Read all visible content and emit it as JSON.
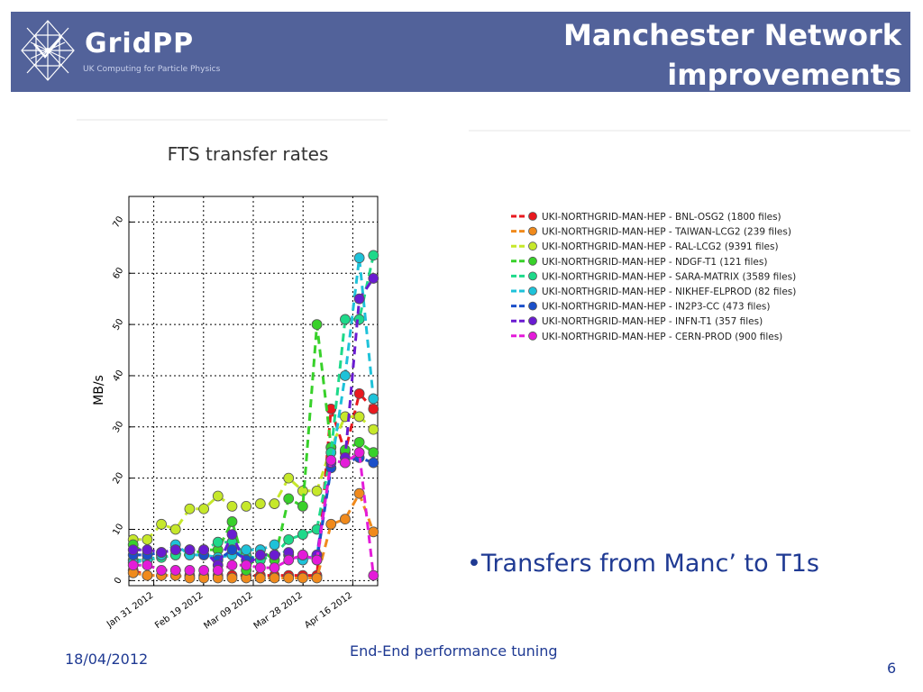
{
  "header": {
    "logo_name": "GridPP",
    "logo_tagline": "UK Computing for Particle Physics",
    "title_line1": "Manchester Network",
    "title_line2": "improvements"
  },
  "bullet": "•Transfers from Manc’ to T1s",
  "footer": {
    "date": "18/04/2012",
    "title": "End-End performance tuning",
    "page": "6"
  },
  "chart_data": {
    "type": "line",
    "title": "FTS transfer rates",
    "ylabel": "MB/s",
    "ylim": [
      -1,
      75
    ],
    "yticks": [
      0,
      10,
      20,
      30,
      40,
      50,
      60,
      70
    ],
    "xticks": [
      "Jan 31 2012",
      "Feb 19 2012",
      "Mar 09 2012",
      "Mar 28 2012",
      "Apr 16 2012"
    ],
    "x": [
      0,
      1,
      2,
      3,
      4,
      5,
      6,
      7,
      8,
      9,
      10,
      11,
      12,
      13,
      14,
      15,
      16,
      17
    ],
    "grid": true,
    "legend_position": "right",
    "series": [
      {
        "name": "UKI-NORTHGRID-MAN-HEP - BNL-OSG2  (1800 files)",
        "color": "#e8191f",
        "values": [
          2,
          1,
          1,
          1,
          1,
          1,
          1,
          1,
          1,
          1,
          1,
          1,
          1,
          1,
          33.5,
          25,
          36.5,
          33.5
        ]
      },
      {
        "name": "UKI-NORTHGRID-MAN-HEP - TAIWAN-LCG2  (239 files)",
        "color": "#f08a1c",
        "values": [
          1.5,
          1,
          1,
          1,
          0.5,
          0.5,
          0.5,
          0.5,
          0.5,
          0.5,
          0.5,
          0.5,
          0.5,
          0.5,
          11,
          12,
          17,
          9.5
        ]
      },
      {
        "name": "UKI-NORTHGRID-MAN-HEP - RAL-LCG2  (9391 files)",
        "color": "#c6e82a",
        "values": [
          8,
          8,
          11,
          10,
          14,
          14,
          16.5,
          14.5,
          14.5,
          15,
          15,
          20,
          17.5,
          17.5,
          26,
          32,
          32,
          29.5
        ]
      },
      {
        "name": "UKI-NORTHGRID-MAN-HEP - NDGF-T1  (121 files)",
        "color": "#38d12a",
        "values": [
          7,
          5,
          5,
          5,
          5,
          6,
          6,
          11.5,
          2,
          6,
          4,
          16,
          14.5,
          50,
          26,
          25.5,
          27,
          25
        ]
      },
      {
        "name": "UKI-NORTHGRID-MAN-HEP - SARA-MATRIX  (3589 files)",
        "color": "#1ed98a",
        "values": [
          4,
          4,
          4.5,
          5,
          6,
          6,
          7.5,
          7.5,
          5,
          4,
          5,
          8,
          9,
          10,
          25,
          51,
          51,
          63.5
        ]
      },
      {
        "name": "UKI-NORTHGRID-MAN-HEP - NIKHEF-ELPROD  (82 files)",
        "color": "#1ec2d9",
        "values": [
          3.5,
          4,
          5,
          7,
          5,
          5,
          4.5,
          5,
          6,
          6,
          7,
          5,
          4,
          5,
          22,
          40,
          63,
          35.5
        ]
      },
      {
        "name": "UKI-NORTHGRID-MAN-HEP - IN2P3-CC  (473 files)",
        "color": "#1b4fc9",
        "values": [
          5,
          5,
          5.5,
          6,
          6,
          5,
          4,
          6,
          4,
          5,
          5,
          5,
          5,
          4,
          22,
          23,
          24,
          23
        ]
      },
      {
        "name": "UKI-NORTHGRID-MAN-HEP - INFN-T1  (357 files)",
        "color": "#6a1bd1",
        "values": [
          6,
          6,
          5.5,
          6,
          6,
          6,
          3,
          9,
          3,
          5,
          5,
          5.5,
          5,
          5,
          23,
          24,
          55,
          59
        ]
      },
      {
        "name": "UKI-NORTHGRID-MAN-HEP - CERN-PROD  (900 files)",
        "color": "#e41bd9",
        "values": [
          3,
          3,
          2,
          2,
          2,
          2,
          2,
          3,
          3,
          2.5,
          2.5,
          4,
          5,
          4,
          23.5,
          23,
          25,
          1
        ]
      }
    ]
  }
}
